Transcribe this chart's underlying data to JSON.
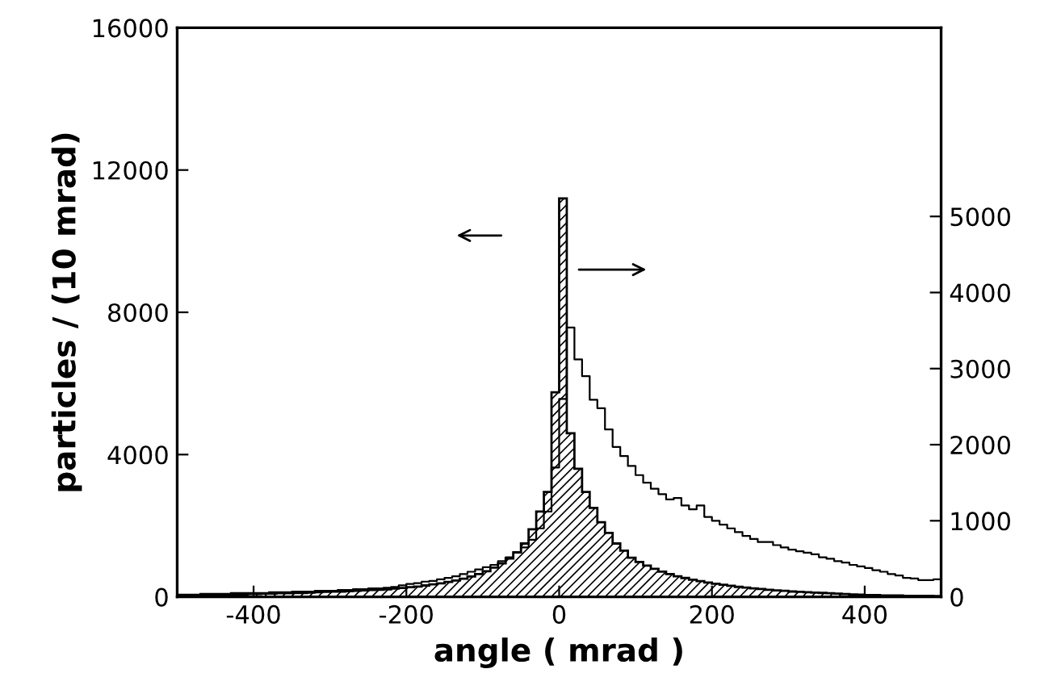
{
  "chart_data": {
    "type": "histogram",
    "xlabel": "angle ( mrad )",
    "ylabel": "particles / (10 mrad)",
    "xlim": [
      -500,
      500
    ],
    "xticks": [
      -400,
      -200,
      0,
      200,
      400
    ],
    "ylim": [
      0,
      16000
    ],
    "yticks": [
      0,
      4000,
      8000,
      12000,
      16000
    ],
    "y2lim": [
      0,
      7480
    ],
    "y2ticks": [
      0,
      1000,
      2000,
      3000,
      4000,
      5000
    ],
    "grid": false,
    "bins": [
      -500,
      -490,
      -480,
      -470,
      -460,
      -450,
      -440,
      -430,
      -420,
      -410,
      -400,
      -390,
      -380,
      -370,
      -360,
      -350,
      -340,
      -330,
      -320,
      -310,
      -300,
      -290,
      -280,
      -270,
      -260,
      -250,
      -240,
      -230,
      -220,
      -210,
      -200,
      -190,
      -180,
      -170,
      -160,
      -150,
      -140,
      -130,
      -120,
      -110,
      -100,
      -90,
      -80,
      -70,
      -60,
      -50,
      -40,
      -30,
      -20,
      -10,
      0,
      10,
      20,
      30,
      40,
      50,
      60,
      70,
      80,
      90,
      100,
      110,
      120,
      130,
      140,
      150,
      160,
      170,
      180,
      190,
      200,
      210,
      220,
      230,
      240,
      250,
      260,
      270,
      280,
      290,
      300,
      310,
      320,
      330,
      340,
      350,
      360,
      370,
      380,
      390,
      400,
      410,
      420,
      430,
      440,
      450,
      460,
      470,
      480,
      490,
      500
    ],
    "series": [
      {
        "axis": "y",
        "color": "#000000",
        "values": [
          40,
          40,
          50,
          50,
          50,
          60,
          60,
          70,
          70,
          80,
          80,
          90,
          90,
          100,
          100,
          110,
          110,
          120,
          130,
          140,
          150,
          150,
          160,
          170,
          180,
          190,
          200,
          210,
          230,
          250,
          270,
          290,
          320,
          350,
          380,
          420,
          460,
          510,
          570,
          640,
          720,
          820,
          940,
          1080,
          1250,
          1500,
          1900,
          2400,
          2950,
          5750,
          11200,
          4600,
          3600,
          2950,
          2500,
          2100,
          1800,
          1500,
          1300,
          1100,
          980,
          880,
          790,
          710,
          640,
          580,
          530,
          480,
          440,
          400,
          370,
          340,
          310,
          280,
          260,
          240,
          220,
          200,
          180,
          170,
          150,
          140,
          130,
          120,
          110,
          100,
          90,
          80,
          70,
          60,
          50,
          50,
          40,
          40,
          40,
          30,
          30,
          30,
          30,
          20
        ]
      },
      {
        "axis": "y2",
        "color": "#000000",
        "values": [
          30,
          30,
          30,
          40,
          40,
          40,
          40,
          50,
          50,
          50,
          50,
          50,
          60,
          60,
          60,
          70,
          70,
          70,
          80,
          80,
          80,
          90,
          90,
          100,
          100,
          110,
          110,
          120,
          130,
          150,
          170,
          180,
          200,
          210,
          230,
          250,
          270,
          300,
          330,
          360,
          390,
          420,
          470,
          520,
          580,
          650,
          750,
          900,
          1120,
          1700,
          2600,
          3540,
          3120,
          2900,
          2590,
          2480,
          2200,
          1970,
          1850,
          1720,
          1600,
          1500,
          1420,
          1350,
          1280,
          1300,
          1200,
          1150,
          1200,
          1050,
          1000,
          950,
          900,
          850,
          800,
          760,
          720,
          720,
          680,
          650,
          620,
          600,
          580,
          560,
          520,
          500,
          470,
          450,
          420,
          400,
          380,
          350,
          330,
          300,
          280,
          250,
          240,
          220,
          220,
          230
        ]
      }
    ]
  }
}
